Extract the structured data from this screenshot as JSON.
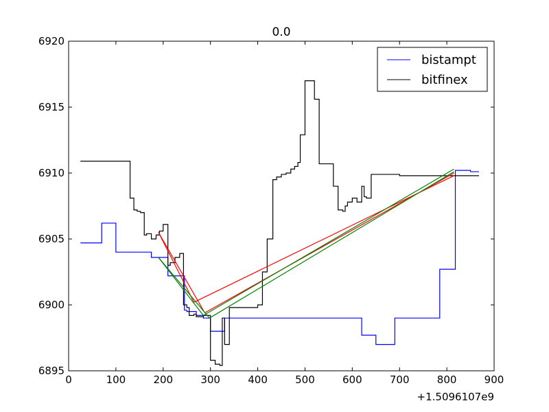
{
  "chart_data": {
    "type": "line",
    "title": "0.0",
    "xlabel": "",
    "ylabel": "",
    "x_offset_label": "+1.5096107e9",
    "xlim": [
      0,
      900
    ],
    "ylim": [
      6895,
      6920
    ],
    "xticks": [
      0,
      100,
      200,
      300,
      400,
      500,
      600,
      700,
      800,
      900
    ],
    "xtick_labels": [
      "0",
      "100",
      "200",
      "300",
      "400",
      "500",
      "600",
      "700",
      "800",
      "900"
    ],
    "yticks": [
      6895,
      6900,
      6905,
      6910,
      6915,
      6920
    ],
    "ytick_labels": [
      "6895",
      "6900",
      "6905",
      "6910",
      "6915",
      "6920"
    ],
    "grid": false,
    "legend_position": "top-right",
    "series": [
      {
        "name": "bistampt",
        "color": "#0000ff",
        "step": true,
        "x": [
          25,
          70,
          100,
          175,
          200,
          210,
          235,
          245,
          250,
          262,
          270,
          285,
          300,
          330,
          345,
          400,
          530,
          620,
          650,
          685,
          690,
          785,
          815,
          818,
          850,
          868
        ],
        "y": [
          6904.7,
          6906.2,
          6904.0,
          6903.6,
          6903.6,
          6902.2,
          6902.2,
          6899.6,
          6899.5,
          6899.5,
          6899.2,
          6899.0,
          6898.0,
          6899.0,
          6899.0,
          6899.0,
          6899.0,
          6897.7,
          6897.0,
          6897.0,
          6899.0,
          6902.7,
          6902.7,
          6910.2,
          6910.1,
          6910.1
        ]
      },
      {
        "name": "bitfinex",
        "color": "#000000",
        "step": true,
        "x": [
          25,
          130,
          138,
          145,
          152,
          160,
          165,
          175,
          185,
          192,
          200,
          210,
          215,
          225,
          235,
          243,
          250,
          255,
          265,
          270,
          285,
          300,
          310,
          320,
          325,
          330,
          340,
          400,
          410,
          420,
          432,
          440,
          450,
          460,
          470,
          478,
          485,
          490,
          500,
          520,
          530,
          560,
          570,
          580,
          585,
          590,
          600,
          610,
          620,
          625,
          630,
          640,
          660,
          700,
          750,
          800,
          820,
          868
        ],
        "y": [
          6910.9,
          6908.1,
          6907.2,
          6907.1,
          6907.0,
          6905.3,
          6905.4,
          6905.0,
          6905.3,
          6905.6,
          6906.1,
          6903.0,
          6903.2,
          6903.6,
          6903.9,
          6900.0,
          6899.8,
          6899.2,
          6899.3,
          6899.1,
          6899.2,
          6895.8,
          6895.5,
          6895.4,
          6899.0,
          6897.0,
          6899.8,
          6900.0,
          6902.5,
          6905.0,
          6909.5,
          6909.7,
          6909.9,
          6910.0,
          6910.3,
          6910.5,
          6910.8,
          6912.9,
          6917.0,
          6915.6,
          6910.7,
          6909.0,
          6907.2,
          6907.1,
          6907.5,
          6907.8,
          6908.1,
          6907.8,
          6909.0,
          6908.2,
          6908.1,
          6909.9,
          6909.9,
          6909.8,
          6909.8,
          6909.8,
          6909.8,
          6909.8
        ]
      },
      {
        "color": "#ff0000",
        "segments": [
          [
            [
              190,
              6905.5
            ],
            [
              288,
              6899.4
            ]
          ],
          [
            [
              288,
              6899.4
            ],
            [
              815,
              6910.0
            ]
          ],
          [
            [
              815,
              6909.8
            ],
            [
              265,
              6900.2
            ]
          ],
          [
            [
              265,
              6900.2
            ],
            [
              190,
              6905.5
            ]
          ]
        ]
      },
      {
        "color": "#008000",
        "segments": [
          [
            [
              190,
              6903.6
            ],
            [
              298,
              6899.0
            ]
          ],
          [
            [
              298,
              6899.0
            ],
            [
              815,
              6910.1
            ]
          ],
          [
            [
              815,
              6910.3
            ],
            [
              285,
              6899.2
            ]
          ],
          [
            [
              285,
              6899.2
            ],
            [
              190,
              6903.6
            ]
          ]
        ]
      }
    ]
  }
}
